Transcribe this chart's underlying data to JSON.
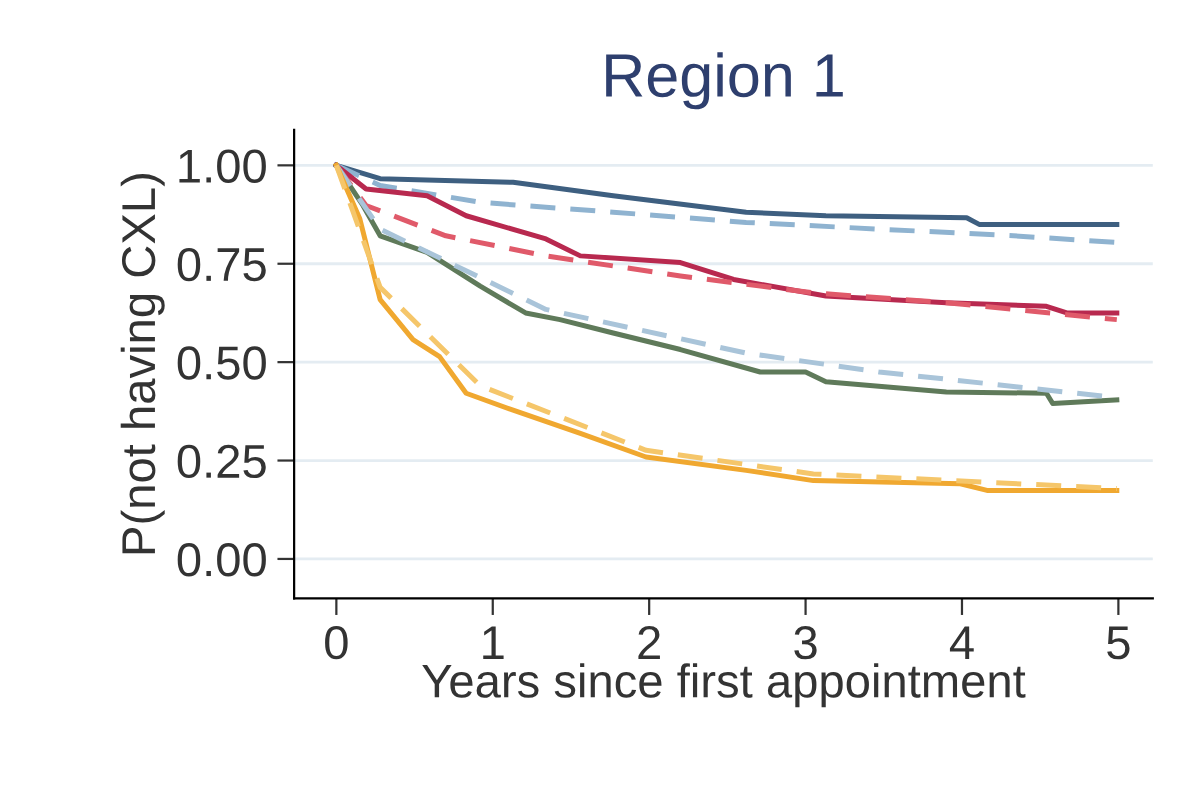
{
  "chart_data": {
    "type": "line",
    "title": "Region 1",
    "xlabel": "Years since first appointment",
    "ylabel": "P(not having CXL)",
    "xlim": [
      -0.27,
      5.22
    ],
    "ylim": [
      -0.1,
      1.09
    ],
    "xticks": [
      0,
      1,
      2,
      3,
      4,
      5
    ],
    "yticks": [
      {
        "value": 0,
        "label": "0.00"
      },
      {
        "value": 0.25,
        "label": "0.25"
      },
      {
        "value": 0.5,
        "label": "0.50"
      },
      {
        "value": 0.75,
        "label": "0.75"
      },
      {
        "value": 1,
        "label": "1.00"
      }
    ],
    "grid": "y",
    "legend": false,
    "series": [
      {
        "color": "#3e5f80",
        "line_style": "solid",
        "x": [
          0,
          0.28,
          1.13,
          1.77,
          2.62,
          3.13,
          4.03,
          4.11,
          4.99
        ],
        "values": [
          1,
          0.966,
          0.957,
          0.923,
          0.881,
          0.872,
          0.867,
          0.85,
          0.85
        ]
      },
      {
        "color": "#8fb3d0",
        "line_style": "dashed",
        "x": [
          0,
          0.28,
          0.92,
          1.77,
          2.62,
          3.47,
          4.33,
          4.99
        ],
        "values": [
          1,
          0.949,
          0.906,
          0.881,
          0.855,
          0.838,
          0.821,
          0.804
        ]
      },
      {
        "color": "#b8294f",
        "line_style": "solid",
        "x": [
          0,
          0.19,
          0.58,
          0.83,
          1.34,
          1.56,
          2.2,
          2.54,
          3.13,
          3.9,
          4.54,
          4.67,
          4.99
        ],
        "values": [
          1,
          0.94,
          0.923,
          0.872,
          0.813,
          0.77,
          0.753,
          0.71,
          0.668,
          0.651,
          0.642,
          0.625,
          0.625
        ]
      },
      {
        "color": "#e05a6a",
        "line_style": "dashed",
        "x": [
          0,
          0.19,
          0.7,
          1.34,
          2.2,
          3.05,
          3.9,
          4.99
        ],
        "values": [
          1,
          0.898,
          0.821,
          0.77,
          0.719,
          0.676,
          0.651,
          0.608
        ]
      },
      {
        "color": "#5f7a5a",
        "line_style": "solid",
        "x": [
          0,
          0.17,
          0.28,
          0.58,
          0.92,
          1.21,
          1.43,
          1.77,
          2.2,
          2.71,
          3.0,
          3.13,
          3.9,
          4.54,
          4.58,
          4.99
        ],
        "values": [
          1,
          0.898,
          0.821,
          0.779,
          0.693,
          0.625,
          0.608,
          0.574,
          0.532,
          0.475,
          0.475,
          0.45,
          0.424,
          0.421,
          0.395,
          0.404
        ]
      },
      {
        "color": "#a9c4d9",
        "line_style": "dashed",
        "x": [
          0,
          0.28,
          1.34,
          2.62,
          3.47,
          4.99
        ],
        "values": [
          1,
          0.838,
          0.634,
          0.523,
          0.475,
          0.41
        ]
      },
      {
        "color": "#f0a830",
        "line_style": "solid",
        "x": [
          0,
          0.15,
          0.28,
          0.49,
          0.66,
          0.83,
          1.13,
          1.56,
          1.98,
          2.62,
          3.05,
          3.99,
          4.16,
          4.99
        ],
        "values": [
          1,
          0.864,
          0.659,
          0.557,
          0.514,
          0.421,
          0.378,
          0.319,
          0.259,
          0.225,
          0.199,
          0.191,
          0.174,
          0.174
        ]
      },
      {
        "color": "#f5c66a",
        "line_style": "dashed",
        "x": [
          0,
          0.28,
          0.92,
          1.98,
          3.05,
          4.99
        ],
        "values": [
          1,
          0.69,
          0.44,
          0.276,
          0.216,
          0.179
        ]
      }
    ]
  }
}
